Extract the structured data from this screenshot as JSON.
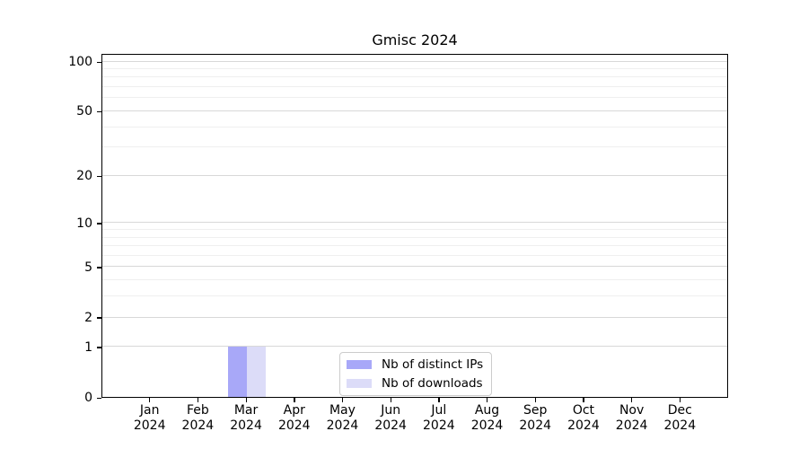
{
  "chart_data": {
    "type": "bar",
    "title": "Gmisc 2024",
    "xlabel": "",
    "ylabel": "",
    "categories": [
      {
        "month": "Jan",
        "year": "2024"
      },
      {
        "month": "Feb",
        "year": "2024"
      },
      {
        "month": "Mar",
        "year": "2024"
      },
      {
        "month": "Apr",
        "year": "2024"
      },
      {
        "month": "May",
        "year": "2024"
      },
      {
        "month": "Jun",
        "year": "2024"
      },
      {
        "month": "Jul",
        "year": "2024"
      },
      {
        "month": "Aug",
        "year": "2024"
      },
      {
        "month": "Sep",
        "year": "2024"
      },
      {
        "month": "Oct",
        "year": "2024"
      },
      {
        "month": "Nov",
        "year": "2024"
      },
      {
        "month": "Dec",
        "year": "2024"
      }
    ],
    "series": [
      {
        "name": "Nb of distinct IPs",
        "color": "#a8a8f8",
        "values": [
          0,
          0,
          1,
          0,
          0,
          0,
          0,
          0,
          0,
          0,
          0,
          0
        ]
      },
      {
        "name": "Nb of downloads",
        "color": "#dcdcf8",
        "values": [
          0,
          0,
          1,
          0,
          0,
          0,
          0,
          0,
          0,
          0,
          0,
          0
        ]
      }
    ],
    "yscale": "log1p",
    "ylim": [
      0,
      112
    ],
    "yticks": [
      0,
      1,
      2,
      5,
      10,
      20,
      50,
      100
    ],
    "yticks_minor": [
      3,
      4,
      6,
      7,
      8,
      9,
      30,
      40,
      60,
      70,
      80,
      90
    ],
    "grid": "horizontal",
    "legend_position": "inside-bottom-center",
    "colors": {
      "axis": "#000000",
      "grid_major": "#d8d8d8",
      "grid_minor": "#efefef",
      "legend_border": "#cccccc",
      "background": "#ffffff"
    }
  }
}
